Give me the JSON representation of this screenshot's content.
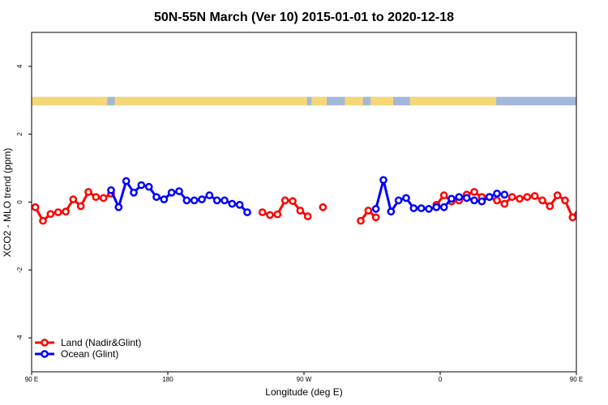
{
  "chart_data": {
    "type": "line",
    "title": "50N-55N March (Ver 10)   2015-01-01 to 2020-12-18",
    "xlabel": "Longitude (deg E)",
    "ylabel": "XCO2 - MLO trend (ppm)",
    "xlim": [
      90,
      450
    ],
    "ylim": [
      -5,
      5
    ],
    "xticks": [
      {
        "value": 90,
        "label": "90 E"
      },
      {
        "value": 180,
        "label": "180"
      },
      {
        "value": 270,
        "label": "90 W"
      },
      {
        "value": 360,
        "label": "0"
      },
      {
        "value": 450,
        "label": "90 E"
      },
      {
        "value": 540,
        "label": "180"
      }
    ],
    "yticks": [
      {
        "value": -4,
        "label": "-4"
      },
      {
        "value": -2,
        "label": "-2"
      },
      {
        "value": 0,
        "label": "0"
      },
      {
        "value": 2,
        "label": "2"
      },
      {
        "value": 4,
        "label": "4"
      }
    ],
    "grid": false,
    "legend_position": "bottom-left",
    "land_ocean_strip": {
      "y_range": [
        2.85,
        3.1
      ],
      "land_color": "#F5D77A",
      "ocean_color": "#A3B7D9",
      "land_spans": [
        [
          90,
          140
        ],
        [
          145,
          272
        ],
        [
          275,
          285
        ],
        [
          297,
          309
        ],
        [
          314,
          329
        ],
        [
          340,
          397
        ],
        [
          450,
          500
        ],
        [
          505,
          522
        ],
        [
          524,
          540
        ]
      ]
    },
    "series": [
      {
        "name": "Land (Nadir&Glint)",
        "color": "#FF0000",
        "points": [
          [
            92.5,
            -0.15
          ],
          [
            97.5,
            -0.55
          ],
          [
            102.5,
            -0.35
          ],
          [
            107.5,
            -0.3
          ],
          [
            112.5,
            -0.28
          ],
          [
            117.5,
            0.08
          ],
          [
            122.5,
            -0.12
          ],
          [
            127.5,
            0.3
          ],
          [
            132.5,
            0.15
          ],
          [
            137.5,
            0.12
          ],
          [
            142.5,
            0.25
          ],
          null,
          [
            242.5,
            -0.3
          ],
          [
            247.5,
            -0.38
          ],
          [
            252.5,
            -0.36
          ],
          [
            257.5,
            0.05
          ],
          [
            262.5,
            0.03
          ],
          [
            267.5,
            -0.25
          ],
          [
            272.5,
            -0.42
          ],
          null,
          [
            282.5,
            -0.15
          ],
          null,
          [
            307.5,
            -0.55
          ],
          [
            312.5,
            -0.25
          ],
          [
            317.5,
            -0.45
          ],
          null,
          [
            357.5,
            -0.08
          ],
          [
            362.5,
            0.2
          ],
          [
            367.5,
            0.02
          ],
          [
            372.5,
            0.05
          ],
          [
            377.5,
            0.22
          ],
          [
            382.5,
            0.3
          ],
          [
            387.5,
            0.15
          ],
          [
            392.5,
            0.15
          ],
          [
            397.5,
            0.05
          ],
          [
            402.5,
            -0.05
          ],
          [
            407.5,
            0.15
          ],
          [
            412.5,
            0.1
          ],
          [
            417.5,
            0.15
          ],
          [
            422.5,
            0.18
          ],
          [
            427.5,
            0.05
          ],
          [
            432.5,
            -0.12
          ],
          [
            437.5,
            0.2
          ],
          [
            442.5,
            0.05
          ],
          [
            447.5,
            -0.45
          ],
          [
            452.5,
            -0.15
          ],
          [
            457.5,
            -0.55
          ],
          [
            462.5,
            -0.38
          ],
          [
            467.5,
            -0.3
          ],
          [
            472.5,
            -0.28
          ],
          [
            477.5,
            0.08
          ],
          [
            482.5,
            -0.12
          ],
          [
            487.5,
            0.3
          ],
          [
            492.5,
            0.15
          ],
          [
            497.5,
            0.12
          ],
          [
            502.5,
            0.25
          ]
        ]
      },
      {
        "name": "Ocean (Glint)",
        "color": "#0000FF",
        "points": [
          [
            142.5,
            0.35
          ],
          [
            147.5,
            -0.15
          ],
          [
            152.5,
            0.62
          ],
          [
            157.5,
            0.28
          ],
          [
            162.5,
            0.5
          ],
          [
            167.5,
            0.45
          ],
          [
            172.5,
            0.15
          ],
          [
            177.5,
            0.08
          ],
          [
            182.5,
            0.28
          ],
          [
            187.5,
            0.32
          ],
          [
            192.5,
            0.05
          ],
          [
            197.5,
            0.05
          ],
          [
            202.5,
            0.08
          ],
          [
            207.5,
            0.2
          ],
          [
            212.5,
            0.05
          ],
          [
            217.5,
            0.05
          ],
          [
            222.5,
            -0.05
          ],
          [
            227.5,
            -0.08
          ],
          [
            232.5,
            -0.3
          ],
          null,
          [
            317.5,
            -0.2
          ],
          [
            322.5,
            0.65
          ],
          [
            327.5,
            -0.28
          ],
          [
            332.5,
            0.05
          ],
          [
            337.5,
            0.12
          ],
          [
            342.5,
            -0.18
          ],
          [
            347.5,
            -0.18
          ],
          [
            352.5,
            -0.2
          ],
          [
            357.5,
            -0.15
          ],
          [
            362.5,
            -0.15
          ],
          [
            367.5,
            0.1
          ],
          [
            372.5,
            0.15
          ],
          [
            377.5,
            0.12
          ],
          [
            382.5,
            0.05
          ],
          [
            387.5,
            0.02
          ],
          [
            392.5,
            0.15
          ],
          [
            397.5,
            0.25
          ],
          [
            402.5,
            0.22
          ],
          null,
          [
            502.5,
            0.35
          ],
          [
            507.5,
            -0.15
          ],
          [
            512.5,
            0.62
          ],
          [
            517.5,
            0.28
          ],
          [
            522.5,
            0.5
          ],
          [
            527.5,
            0.45
          ],
          [
            532.5,
            0.15
          ],
          [
            537.5,
            0.08
          ]
        ]
      }
    ]
  }
}
